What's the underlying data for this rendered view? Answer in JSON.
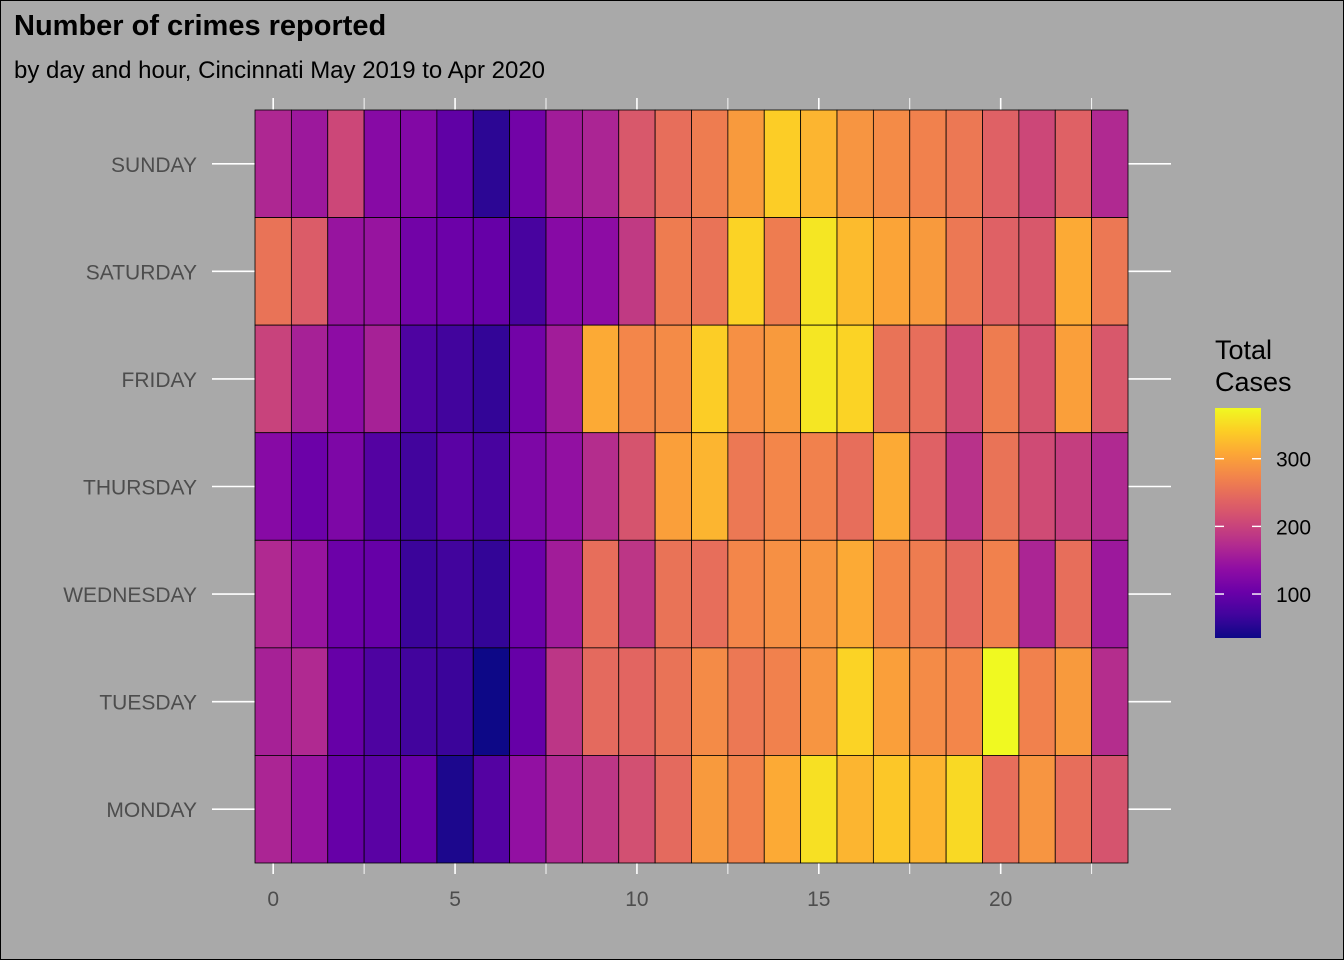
{
  "chart_data": {
    "type": "heatmap",
    "title": "Number of crimes reported",
    "subtitle": "by day and hour, Cincinnati May 2019 to Apr 2020",
    "xlabel": "",
    "ylabel": "",
    "x": [
      0,
      1,
      2,
      3,
      4,
      5,
      6,
      7,
      8,
      9,
      10,
      11,
      12,
      13,
      14,
      15,
      16,
      17,
      18,
      19,
      20,
      21,
      22,
      23
    ],
    "x_ticks": [
      0,
      5,
      10,
      15,
      20
    ],
    "y_categories": [
      "SUNDAY",
      "SATURDAY",
      "FRIDAY",
      "THURSDAY",
      "WEDNESDAY",
      "TUESDAY",
      "MONDAY"
    ],
    "values": [
      [
        168,
        150,
        205,
        130,
        125,
        95,
        55,
        110,
        155,
        165,
        225,
        250,
        265,
        295,
        340,
        320,
        290,
        280,
        270,
        260,
        235,
        205,
        235,
        170
      ],
      [
        255,
        230,
        145,
        145,
        110,
        105,
        100,
        75,
        130,
        135,
        190,
        265,
        255,
        345,
        265,
        360,
        325,
        305,
        295,
        260,
        235,
        225,
        310,
        260
      ],
      [
        200,
        160,
        135,
        160,
        80,
        70,
        60,
        110,
        155,
        310,
        275,
        280,
        340,
        285,
        295,
        360,
        345,
        255,
        250,
        210,
        265,
        220,
        300,
        225
      ],
      [
        130,
        105,
        120,
        85,
        70,
        90,
        75,
        120,
        140,
        175,
        220,
        300,
        320,
        260,
        275,
        270,
        250,
        310,
        235,
        180,
        255,
        210,
        195,
        170
      ],
      [
        170,
        145,
        105,
        100,
        65,
        70,
        60,
        105,
        155,
        250,
        185,
        255,
        250,
        275,
        285,
        290,
        310,
        275,
        265,
        245,
        270,
        165,
        250,
        150
      ],
      [
        160,
        170,
        100,
        80,
        70,
        65,
        35,
        100,
        185,
        245,
        240,
        255,
        280,
        260,
        270,
        290,
        345,
        300,
        280,
        275,
        375,
        270,
        295,
        175
      ],
      [
        165,
        145,
        100,
        90,
        100,
        45,
        85,
        140,
        170,
        185,
        215,
        245,
        295,
        270,
        310,
        355,
        320,
        335,
        320,
        350,
        250,
        290,
        250,
        220
      ]
    ],
    "legend": {
      "title": [
        "Total",
        "Cases"
      ],
      "ticks": [
        100,
        200,
        300
      ],
      "min": 35,
      "max": 375,
      "position": "right"
    },
    "colormap": "plasma",
    "grid": true
  }
}
